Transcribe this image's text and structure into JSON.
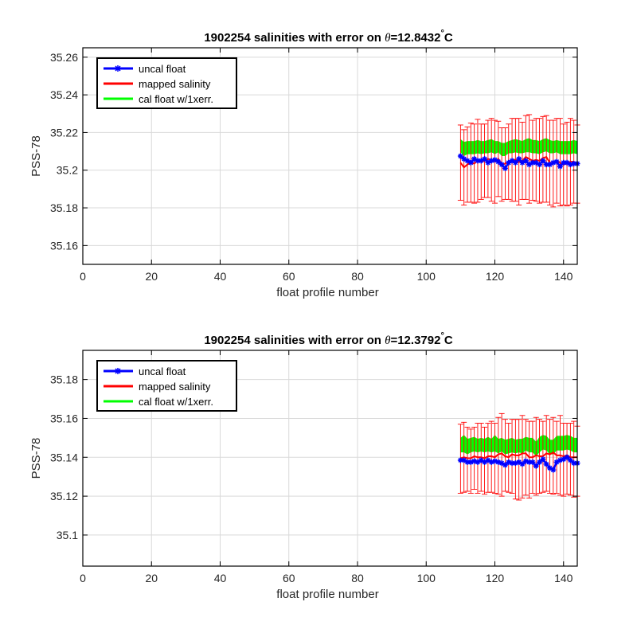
{
  "colors": {
    "uncal": "#0000ff",
    "mapped": "#ff0000",
    "errorbar": "#ff0000",
    "cal_fill": "#00ff00",
    "grid": "#d9d9d9",
    "axis": "#000000"
  },
  "chart_data": [
    {
      "type": "line",
      "title_prefix": "1902254 salinities with error on ",
      "title_theta": "θ",
      "title_value": "=12.8432",
      "title_degree": "°",
      "title_unit": "C",
      "xlabel": "float profile number",
      "ylabel": "PSS-78",
      "xlim": [
        0,
        144
      ],
      "ylim": [
        35.15,
        35.265
      ],
      "xticks": [
        0,
        20,
        40,
        60,
        80,
        100,
        120,
        140
      ],
      "xtick_labels": [
        "0",
        "20",
        "40",
        "60",
        "80",
        "100",
        "120",
        "140"
      ],
      "yticks": [
        35.16,
        35.18,
        35.2,
        35.22,
        35.24,
        35.26
      ],
      "ytick_labels": [
        "35.16",
        "35.18",
        "35.2",
        "35.22",
        "35.24",
        "35.26"
      ],
      "grid": true,
      "legend": {
        "position": "top-left",
        "entries": [
          "uncal float",
          "mapped salinity",
          "cal float w/1xerr."
        ]
      },
      "x": [
        110,
        111,
        112,
        113,
        114,
        115,
        116,
        117,
        118,
        119,
        120,
        121,
        122,
        123,
        124,
        125,
        126,
        127,
        128,
        129,
        130,
        131,
        132,
        133,
        134,
        135,
        136,
        137,
        138,
        139,
        140,
        141,
        142,
        143,
        144
      ],
      "series": [
        {
          "name": "uncal float",
          "values": [
            35.2075,
            35.206,
            35.205,
            35.204,
            35.206,
            35.205,
            35.205,
            35.206,
            35.204,
            35.205,
            35.2055,
            35.2045,
            35.203,
            35.201,
            35.204,
            35.205,
            35.204,
            35.206,
            35.204,
            35.205,
            35.203,
            35.204,
            35.204,
            35.203,
            35.205,
            35.203,
            35.203,
            35.204,
            35.2045,
            35.202,
            35.204,
            35.204,
            35.203,
            35.2035,
            35.2035
          ]
        },
        {
          "name": "mapped salinity",
          "values": [
            35.204,
            35.2015,
            35.203,
            35.204,
            35.2035,
            35.205,
            35.2045,
            35.205,
            35.206,
            35.2055,
            35.2045,
            35.206,
            35.203,
            35.2035,
            35.2045,
            35.2055,
            35.2055,
            35.2045,
            35.205,
            35.207,
            35.206,
            35.205,
            35.2055,
            35.205,
            35.2065,
            35.207,
            35.204,
            35.204,
            35.205,
            35.204,
            35.203,
            35.2035,
            35.2045,
            35.2045,
            35.203
          ]
        },
        {
          "name": "cal float w/1xerr.",
          "lower": [
            35.2095,
            35.2075,
            35.2085,
            35.2085,
            35.2085,
            35.209,
            35.2085,
            35.209,
            35.209,
            35.2095,
            35.2085,
            35.2095,
            35.2075,
            35.2075,
            35.209,
            35.209,
            35.2095,
            35.209,
            35.209,
            35.2095,
            35.2095,
            35.209,
            35.209,
            35.2085,
            35.2095,
            35.21,
            35.209,
            35.209,
            35.2095,
            35.2085,
            35.2085,
            35.2085,
            35.2085,
            35.209,
            35.2085
          ],
          "upper": [
            35.2165,
            35.215,
            35.2155,
            35.2155,
            35.2155,
            35.216,
            35.2155,
            35.2155,
            35.216,
            35.2165,
            35.2155,
            35.2155,
            35.2145,
            35.2145,
            35.2155,
            35.216,
            35.2165,
            35.216,
            35.2155,
            35.2165,
            35.217,
            35.216,
            35.216,
            35.2155,
            35.2165,
            35.217,
            35.216,
            35.2155,
            35.216,
            35.2155,
            35.2155,
            35.2155,
            35.2155,
            35.216,
            35.2155
          ]
        }
      ],
      "errorbars": {
        "series": "mapped salinity",
        "lower": [
          35.184,
          35.1815,
          35.183,
          35.183,
          35.1825,
          35.183,
          35.1845,
          35.1855,
          35.1855,
          35.1835,
          35.1825,
          35.186,
          35.1835,
          35.1845,
          35.1845,
          35.1835,
          35.1835,
          35.1815,
          35.1845,
          35.1845,
          35.1825,
          35.184,
          35.1835,
          35.1825,
          35.183,
          35.183,
          35.1815,
          35.1805,
          35.1825,
          35.181,
          35.1815,
          35.181,
          35.1815,
          35.1825,
          35.1825
        ],
        "upper": [
          35.224,
          35.2215,
          35.223,
          35.225,
          35.2245,
          35.227,
          35.2245,
          35.2245,
          35.2265,
          35.2275,
          35.2265,
          35.226,
          35.2225,
          35.2225,
          35.2245,
          35.2275,
          35.2275,
          35.2275,
          35.2255,
          35.229,
          35.2295,
          35.2265,
          35.2275,
          35.2275,
          35.2285,
          35.229,
          35.2265,
          35.2265,
          35.2275,
          35.2275,
          35.2245,
          35.2255,
          35.2275,
          35.2265,
          35.224
        ]
      }
    },
    {
      "type": "line",
      "title_prefix": "1902254 salinities with error on ",
      "title_theta": "θ",
      "title_value": "=12.3792",
      "title_degree": "°",
      "title_unit": "C",
      "xlabel": "float profile number",
      "ylabel": "PSS-78",
      "xlim": [
        0,
        144
      ],
      "ylim": [
        35.084,
        35.195
      ],
      "xticks": [
        0,
        20,
        40,
        60,
        80,
        100,
        120,
        140
      ],
      "xtick_labels": [
        "0",
        "20",
        "40",
        "60",
        "80",
        "100",
        "120",
        "140"
      ],
      "yticks": [
        35.1,
        35.12,
        35.14,
        35.16,
        35.18
      ],
      "ytick_labels": [
        "35.1",
        "35.12",
        "35.14",
        "35.16",
        "35.18"
      ],
      "grid": true,
      "legend": {
        "position": "top-left",
        "entries": [
          "uncal float",
          "mapped salinity",
          "cal float w/1xerr."
        ]
      },
      "x": [
        110,
        111,
        112,
        113,
        114,
        115,
        116,
        117,
        118,
        119,
        120,
        121,
        122,
        123,
        124,
        125,
        126,
        127,
        128,
        129,
        130,
        131,
        132,
        133,
        134,
        135,
        136,
        137,
        138,
        139,
        140,
        141,
        142,
        143,
        144
      ],
      "series": [
        {
          "name": "uncal float",
          "values": [
            35.1385,
            35.1385,
            35.1375,
            35.1375,
            35.138,
            35.1375,
            35.1385,
            35.1375,
            35.1385,
            35.1375,
            35.138,
            35.1375,
            35.137,
            35.136,
            35.1375,
            35.137,
            35.137,
            35.1375,
            35.1365,
            35.138,
            35.1375,
            35.1375,
            35.1355,
            35.1375,
            35.139,
            35.1365,
            35.1345,
            35.1335,
            35.1375,
            35.1385,
            35.139,
            35.14,
            35.1385,
            35.137,
            35.137
          ]
        },
        {
          "name": "mapped salinity",
          "values": [
            35.1395,
            35.14,
            35.1395,
            35.1395,
            35.1405,
            35.14,
            35.14,
            35.1395,
            35.1405,
            35.1405,
            35.14,
            35.1415,
            35.142,
            35.1405,
            35.14,
            35.1415,
            35.141,
            35.141,
            35.142,
            35.142,
            35.14,
            35.14,
            35.141,
            35.1405,
            35.1405,
            35.142,
            35.1415,
            35.1425,
            35.141,
            35.141,
            35.1405,
            35.141,
            35.14,
            35.14,
            35.14
          ]
        },
        {
          "name": "cal float w/1xerr.",
          "lower": [
            35.1425,
            35.1425,
            35.1415,
            35.1425,
            35.143,
            35.1425,
            35.143,
            35.1425,
            35.143,
            35.1425,
            35.143,
            35.142,
            35.143,
            35.1415,
            35.142,
            35.1425,
            35.142,
            35.1425,
            35.142,
            35.1435,
            35.1425,
            35.1425,
            35.1405,
            35.1425,
            35.144,
            35.1435,
            35.1415,
            35.1415,
            35.1435,
            35.1435,
            35.1435,
            35.144,
            35.1435,
            35.1425,
            35.1425
          ],
          "upper": [
            35.15,
            35.1515,
            35.1495,
            35.15,
            35.1505,
            35.1495,
            35.15,
            35.1495,
            35.1505,
            35.1495,
            35.1515,
            35.1495,
            35.15,
            35.149,
            35.1495,
            35.15,
            35.149,
            35.1495,
            35.1495,
            35.1505,
            35.15,
            35.15,
            35.148,
            35.1505,
            35.1515,
            35.151,
            35.149,
            35.149,
            35.151,
            35.151,
            35.151,
            35.1515,
            35.151,
            35.15,
            35.15
          ]
        }
      ],
      "errorbars": {
        "series": "mapped salinity",
        "lower": [
          35.1215,
          35.122,
          35.1225,
          35.1215,
          35.1235,
          35.1215,
          35.1225,
          35.121,
          35.122,
          35.122,
          35.1215,
          35.121,
          35.12,
          35.1225,
          35.122,
          35.1215,
          35.1185,
          35.118,
          35.119,
          35.1205,
          35.119,
          35.1215,
          35.1205,
          35.1215,
          35.122,
          35.1225,
          35.1215,
          35.121,
          35.1215,
          35.1205,
          35.12,
          35.121,
          35.1205,
          35.1195,
          35.12
        ],
        "upper": [
          35.157,
          35.158,
          35.1555,
          35.1545,
          35.1555,
          35.1575,
          35.1575,
          35.1555,
          35.1575,
          35.1585,
          35.1575,
          35.1605,
          35.1625,
          35.1595,
          35.1575,
          35.1595,
          35.1595,
          35.1595,
          35.1615,
          35.1595,
          35.1585,
          35.1585,
          35.1605,
          35.1595,
          35.1585,
          35.1615,
          35.1595,
          35.1605,
          35.1585,
          35.1615,
          35.1575,
          35.1575,
          35.1575,
          35.1585,
          35.156
        ]
      }
    }
  ]
}
